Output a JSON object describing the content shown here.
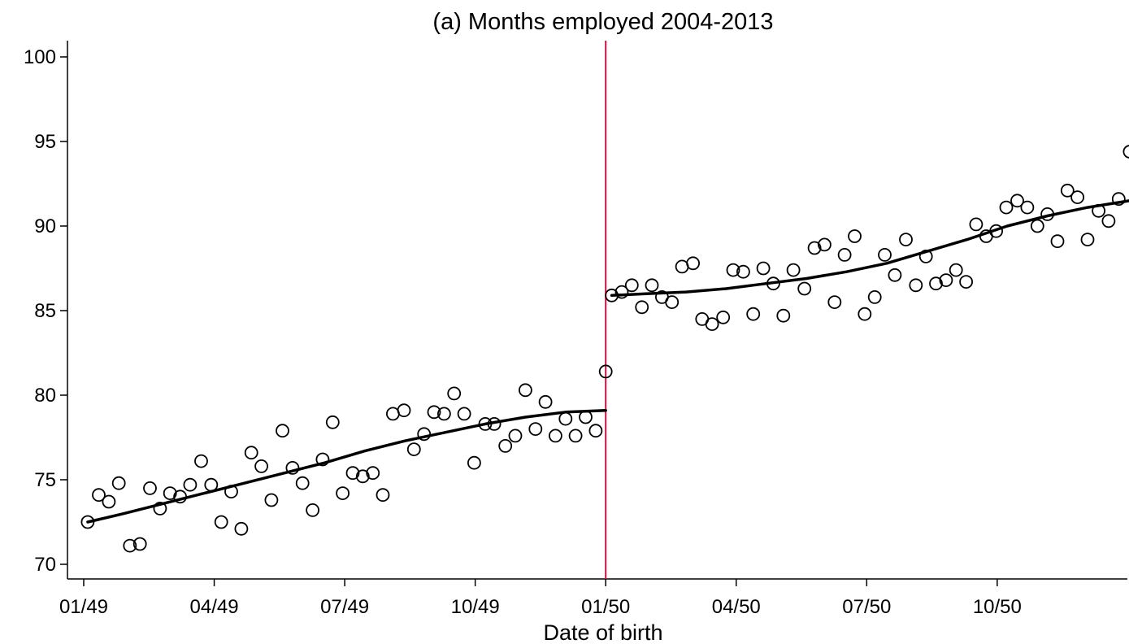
{
  "chart_data": {
    "type": "scatter",
    "title": "(a) Months employed 2004-2013",
    "xlabel": "Date of birth",
    "ylabel": "",
    "ylim": [
      70,
      100
    ],
    "y_ticks": [
      70,
      75,
      80,
      85,
      90,
      95,
      100
    ],
    "x_ticks": [
      {
        "label": "01/49",
        "week": 0
      },
      {
        "label": "04/49",
        "week": 13
      },
      {
        "label": "07/49",
        "week": 26
      },
      {
        "label": "10/49",
        "week": 39
      },
      {
        "label": "01/50",
        "week": 52
      },
      {
        "label": "04/50",
        "week": 65
      },
      {
        "label": "07/50",
        "week": 78
      },
      {
        "label": "10/50",
        "week": 91
      }
    ],
    "cutoff": {
      "label": "01/50",
      "week": 52,
      "color": "#d0103a"
    },
    "grid": false,
    "legend": "none",
    "series": [
      {
        "type": "scatter",
        "marker": "hollow-circle",
        "points": [
          [
            0.4,
            72.5
          ],
          [
            1.5,
            74.1
          ],
          [
            2.5,
            73.7
          ],
          [
            3.5,
            74.8
          ],
          [
            4.6,
            71.1
          ],
          [
            5.6,
            71.2
          ],
          [
            6.6,
            74.5
          ],
          [
            7.6,
            73.3
          ],
          [
            8.6,
            74.2
          ],
          [
            9.6,
            74.0
          ],
          [
            10.6,
            74.7
          ],
          [
            11.7,
            76.1
          ],
          [
            12.7,
            74.7
          ],
          [
            13.7,
            72.5
          ],
          [
            14.7,
            74.3
          ],
          [
            15.7,
            72.1
          ],
          [
            16.7,
            76.6
          ],
          [
            17.7,
            75.8
          ],
          [
            18.7,
            73.8
          ],
          [
            19.8,
            77.9
          ],
          [
            20.8,
            75.7
          ],
          [
            21.8,
            74.8
          ],
          [
            22.8,
            73.2
          ],
          [
            23.8,
            76.2
          ],
          [
            24.8,
            78.4
          ],
          [
            25.8,
            74.2
          ],
          [
            26.8,
            75.4
          ],
          [
            27.8,
            75.2
          ],
          [
            28.8,
            75.4
          ],
          [
            29.8,
            74.1
          ],
          [
            30.8,
            78.9
          ],
          [
            31.9,
            79.1
          ],
          [
            32.9,
            76.8
          ],
          [
            33.9,
            77.7
          ],
          [
            34.9,
            79.0
          ],
          [
            35.9,
            78.9
          ],
          [
            36.9,
            80.1
          ],
          [
            37.9,
            78.9
          ],
          [
            38.9,
            76.0
          ],
          [
            40.0,
            78.3
          ],
          [
            40.9,
            78.3
          ],
          [
            42.0,
            77.0
          ],
          [
            43.0,
            77.6
          ],
          [
            44.0,
            80.3
          ],
          [
            45.0,
            78.0
          ],
          [
            46.0,
            79.6
          ],
          [
            47.0,
            77.6
          ],
          [
            48.0,
            78.6
          ],
          [
            49.0,
            77.6
          ],
          [
            50.0,
            78.7
          ],
          [
            51.0,
            77.9
          ],
          [
            52.0,
            81.4
          ],
          [
            52.6,
            85.9
          ],
          [
            53.6,
            86.1
          ],
          [
            54.6,
            86.5
          ],
          [
            55.6,
            85.2
          ],
          [
            56.6,
            86.5
          ],
          [
            57.6,
            85.8
          ],
          [
            58.6,
            85.5
          ],
          [
            59.6,
            87.6
          ],
          [
            60.7,
            87.8
          ],
          [
            61.6,
            84.5
          ],
          [
            62.6,
            84.2
          ],
          [
            63.7,
            84.6
          ],
          [
            64.7,
            87.4
          ],
          [
            65.7,
            87.3
          ],
          [
            66.7,
            84.8
          ],
          [
            67.7,
            87.5
          ],
          [
            68.7,
            86.6
          ],
          [
            69.7,
            84.7
          ],
          [
            70.7,
            87.4
          ],
          [
            71.8,
            86.3
          ],
          [
            72.8,
            88.7
          ],
          [
            73.8,
            88.9
          ],
          [
            74.8,
            85.5
          ],
          [
            75.8,
            88.3
          ],
          [
            76.8,
            89.4
          ],
          [
            77.8,
            84.8
          ],
          [
            78.8,
            85.8
          ],
          [
            79.8,
            88.3
          ],
          [
            80.8,
            87.1
          ],
          [
            81.9,
            89.2
          ],
          [
            82.9,
            86.5
          ],
          [
            83.9,
            88.2
          ],
          [
            84.9,
            86.6
          ],
          [
            85.9,
            86.8
          ],
          [
            86.9,
            87.4
          ],
          [
            87.9,
            86.7
          ],
          [
            88.9,
            90.1
          ],
          [
            89.9,
            89.4
          ],
          [
            90.9,
            89.7
          ],
          [
            91.9,
            91.1
          ],
          [
            93.0,
            91.5
          ],
          [
            94.0,
            91.1
          ],
          [
            95.0,
            90.0
          ],
          [
            96.0,
            90.7
          ],
          [
            97.0,
            89.1
          ],
          [
            98.0,
            92.1
          ],
          [
            99.0,
            91.7
          ],
          [
            100.0,
            89.2
          ],
          [
            101.1,
            90.9
          ],
          [
            102.1,
            90.3
          ],
          [
            103.1,
            91.6
          ],
          [
            104.2,
            94.4
          ]
        ]
      },
      {
        "type": "line",
        "segment": "before-cutoff",
        "points": [
          [
            0.4,
            72.5
          ],
          [
            4,
            73.0
          ],
          [
            8,
            73.6
          ],
          [
            12,
            74.2
          ],
          [
            16,
            74.8
          ],
          [
            20,
            75.4
          ],
          [
            24,
            76.0
          ],
          [
            28,
            76.7
          ],
          [
            32,
            77.3
          ],
          [
            36,
            77.8
          ],
          [
            40,
            78.3
          ],
          [
            44,
            78.7
          ],
          [
            48,
            79.0
          ],
          [
            52,
            79.1
          ]
        ]
      },
      {
        "type": "line",
        "segment": "after-cutoff",
        "points": [
          [
            52.6,
            85.9
          ],
          [
            56,
            86.0
          ],
          [
            60,
            86.1
          ],
          [
            64,
            86.3
          ],
          [
            68,
            86.6
          ],
          [
            72,
            86.9
          ],
          [
            76,
            87.3
          ],
          [
            80,
            87.8
          ],
          [
            84,
            88.5
          ],
          [
            88,
            89.2
          ],
          [
            92,
            90.0
          ],
          [
            96,
            90.6
          ],
          [
            100,
            91.1
          ],
          [
            104.2,
            91.5
          ]
        ]
      }
    ]
  }
}
